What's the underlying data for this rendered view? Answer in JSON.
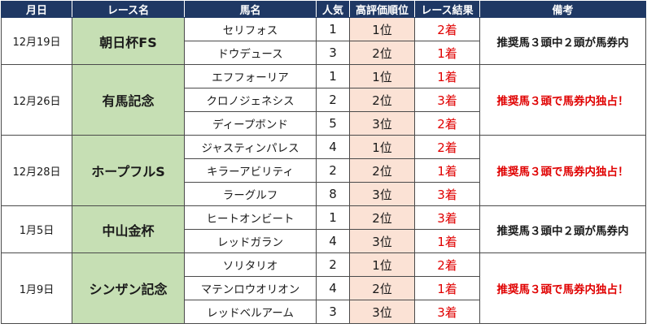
{
  "headers": {
    "date": "月日",
    "race": "レース名",
    "horse": "馬名",
    "popularity": "人気",
    "rank": "高評価順位",
    "result": "レース結果",
    "note": "備考"
  },
  "races": [
    {
      "date": "12月19日",
      "race": "朝日杯FS",
      "note": "推奨馬３頭中２頭が馬券内",
      "note_highlight": false,
      "horses": [
        {
          "name": "セリフォス",
          "pop": "1",
          "rank": "1位",
          "result": "2着"
        },
        {
          "name": "ドウデュース",
          "pop": "3",
          "rank": "2位",
          "result": "1着"
        }
      ]
    },
    {
      "date": "12月26日",
      "race": "有馬記念",
      "note": "推奨馬３頭で馬券内独占！",
      "note_highlight": true,
      "horses": [
        {
          "name": "エフフォーリア",
          "pop": "1",
          "rank": "1位",
          "result": "1着"
        },
        {
          "name": "クロノジェネシス",
          "pop": "2",
          "rank": "2位",
          "result": "3着"
        },
        {
          "name": "ディープボンド",
          "pop": "5",
          "rank": "3位",
          "result": "2着"
        }
      ]
    },
    {
      "date": "12月28日",
      "race": "ホープフルS",
      "note": "推奨馬３頭で馬券内独占！",
      "note_highlight": true,
      "horses": [
        {
          "name": "ジャスティンパレス",
          "pop": "4",
          "rank": "1位",
          "result": "2着"
        },
        {
          "name": "キラーアビリティ",
          "pop": "2",
          "rank": "2位",
          "result": "1着"
        },
        {
          "name": "ラーグルフ",
          "pop": "8",
          "rank": "3位",
          "result": "3着"
        }
      ]
    },
    {
      "date": "1月5日",
      "race": "中山金杯",
      "note": "推奨馬３頭中２頭が馬券内",
      "note_highlight": false,
      "horses": [
        {
          "name": "ヒートオンビート",
          "pop": "1",
          "rank": "2位",
          "result": "3着"
        },
        {
          "name": "レッドガラン",
          "pop": "4",
          "rank": "3位",
          "result": "1着"
        }
      ]
    },
    {
      "date": "1月9日",
      "race": "シンザン記念",
      "note": "推奨馬３頭で馬券内独占！",
      "note_highlight": true,
      "horses": [
        {
          "name": "ソリタリオ",
          "pop": "2",
          "rank": "1位",
          "result": "2着"
        },
        {
          "name": "マテンロウオリオン",
          "pop": "4",
          "rank": "2位",
          "result": "1着"
        },
        {
          "name": "レッドベルアーム",
          "pop": "3",
          "rank": "3位",
          "result": "3着"
        }
      ]
    }
  ]
}
